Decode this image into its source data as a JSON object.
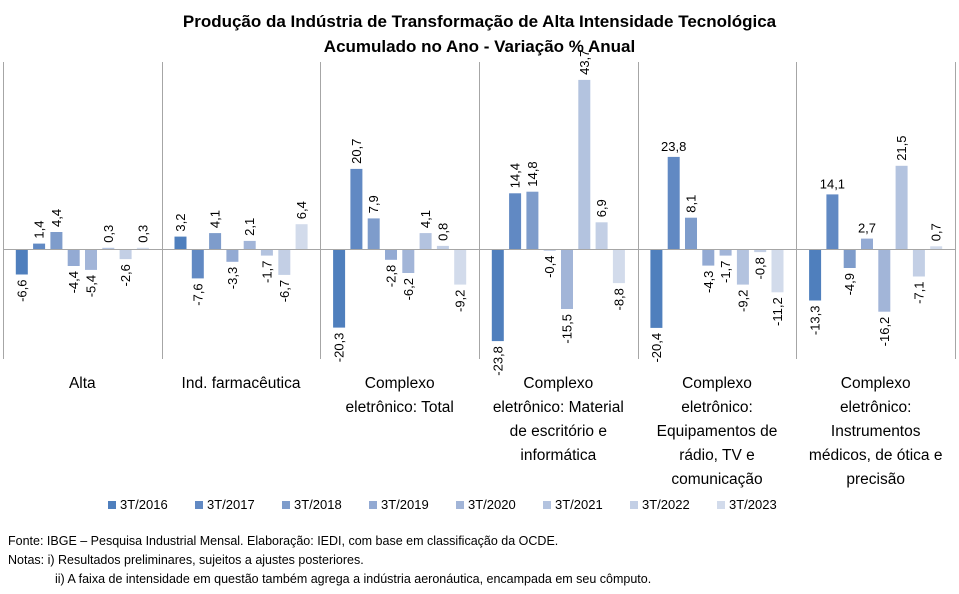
{
  "chart_data": {
    "type": "bar",
    "title": "Produção da Indústria de Transformação de Alta Intensidade Tecnológica",
    "subtitle": "Acumulado no Ano - Variação % Anual",
    "xlabel": "",
    "ylabel": "",
    "ylim": [
      -25,
      45
    ],
    "grid": false,
    "legend_position": "bottom",
    "categories": [
      "Alta",
      "Ind. farmacêutica",
      "Complexo eletrônico: Total",
      "Complexo eletrônico: Material de escritório e informática",
      "Complexo eletrônico: Equipamentos de rádio, TV e comunicação",
      "Complexo eletrônico: Instrumentos médicos, de ótica e precisão"
    ],
    "category_lines": [
      [
        "Alta"
      ],
      [
        "Ind. farmacêutica"
      ],
      [
        "Complexo",
        "eletrônico: Total"
      ],
      [
        "Complexo",
        "eletrônico: Material",
        "de escritório e",
        "informática"
      ],
      [
        "Complexo",
        "eletrônico:",
        "Equipamentos de",
        "rádio, TV e",
        "comunicação"
      ],
      [
        "Complexo",
        "eletrônico:",
        "Instrumentos",
        "médicos, de ótica e",
        "precisão"
      ]
    ],
    "series": [
      {
        "name": "3T/2016",
        "color": "#4f7fbd",
        "values": [
          -6.6,
          3.2,
          -20.3,
          -23.8,
          -20.4,
          -13.3
        ],
        "labels": [
          "-6,6",
          "3,2",
          "-20,3",
          "-23,8",
          "-20,4",
          "-13,3"
        ]
      },
      {
        "name": "3T/2017",
        "color": "#6189c3",
        "values": [
          1.4,
          -7.6,
          20.7,
          14.4,
          23.8,
          14.1
        ],
        "labels": [
          "1,4",
          "-7,6",
          "20,7",
          "14,4",
          "23,8",
          "14,1"
        ]
      },
      {
        "name": "3T/2018",
        "color": "#7e9ccb",
        "values": [
          4.4,
          4.1,
          7.9,
          14.8,
          8.1,
          -4.9
        ],
        "labels": [
          "4,4",
          "4,1",
          "7,9",
          "14,8",
          "8,1",
          "-4,9"
        ]
      },
      {
        "name": "3T/2019",
        "color": "#93aad3",
        "values": [
          -4.4,
          -3.3,
          -2.8,
          -0.4,
          -4.3,
          2.7
        ],
        "labels": [
          "-4,4",
          "-3,3",
          "-2,8",
          "-0,4",
          "-4,3",
          "2,7"
        ]
      },
      {
        "name": "3T/2020",
        "color": "#a2b5d8",
        "values": [
          -5.4,
          2.1,
          -6.2,
          -15.5,
          -1.7,
          -16.2
        ],
        "labels": [
          "-5,4",
          "2,1",
          "-6,2",
          "-15,5",
          "-1,7",
          "-16,2"
        ]
      },
      {
        "name": "3T/2021",
        "color": "#b3c3df",
        "values": [
          0.3,
          -1.7,
          4.1,
          43.7,
          -9.2,
          21.5
        ],
        "labels": [
          "0,3",
          "-1,7",
          "4,1",
          "43,7",
          "-9,2",
          "21,5"
        ]
      },
      {
        "name": "3T/2022",
        "color": "#c3cfe5",
        "values": [
          -2.6,
          -6.7,
          0.8,
          6.9,
          -0.8,
          -7.1
        ],
        "labels": [
          "-2,6",
          "-6,7",
          "0,8",
          "6,9",
          "-0,8",
          "-7,1"
        ]
      },
      {
        "name": "3T/2023",
        "color": "#d2dbeb",
        "values": [
          0.3,
          6.4,
          -9.2,
          -8.8,
          -11.2,
          0.7
        ],
        "labels": [
          "0,3",
          "6,4",
          "-9,2",
          "-8,8",
          "-11,2",
          "0,7"
        ]
      }
    ],
    "horizontal_labels": [
      [
        1,
        4
      ],
      [
        1,
        5
      ],
      [
        3,
        5
      ]
    ]
  },
  "footer": {
    "source": "Fonte: IBGE – Pesquisa Industrial Mensal. Elaboração: IEDI, com base em classificação da OCDE.",
    "note1": "Notas: i) Resultados preliminares, sujeitos a ajustes posteriores.",
    "note2": "ii) A faixa de intensidade em questão também  agrega a indústria aeronáutica, encampada em seu cômputo."
  }
}
